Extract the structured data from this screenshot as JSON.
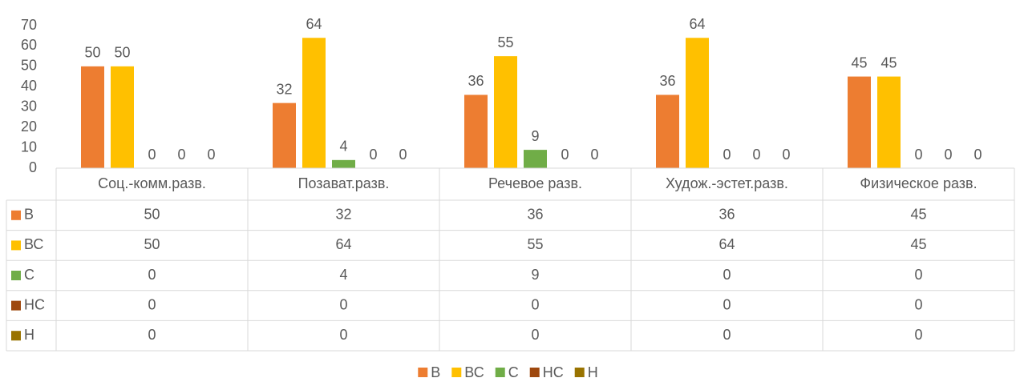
{
  "chart_data": {
    "type": "bar",
    "categories": [
      "Соц.-комм.разв.",
      "Позават.разв.",
      "Речевое разв.",
      "Худож.-эстет.разв.",
      "Физическое разв."
    ],
    "series": [
      {
        "name": "В",
        "color": "#ed7d31",
        "values": [
          50,
          32,
          36,
          36,
          45
        ]
      },
      {
        "name": "ВС",
        "color": "#ffc000",
        "values": [
          50,
          64,
          55,
          64,
          45
        ]
      },
      {
        "name": "С",
        "color": "#70ad47",
        "values": [
          0,
          4,
          9,
          0,
          0
        ]
      },
      {
        "name": "НС",
        "color": "#9e480e",
        "values": [
          0,
          0,
          0,
          0,
          0
        ]
      },
      {
        "name": "Н",
        "color": "#997300",
        "values": [
          0,
          0,
          0,
          0,
          0
        ]
      }
    ],
    "ylim": [
      0,
      70
    ],
    "yticks": [
      0,
      10,
      20,
      30,
      40,
      50,
      60,
      70
    ],
    "grid": false,
    "legend": "bottom"
  }
}
